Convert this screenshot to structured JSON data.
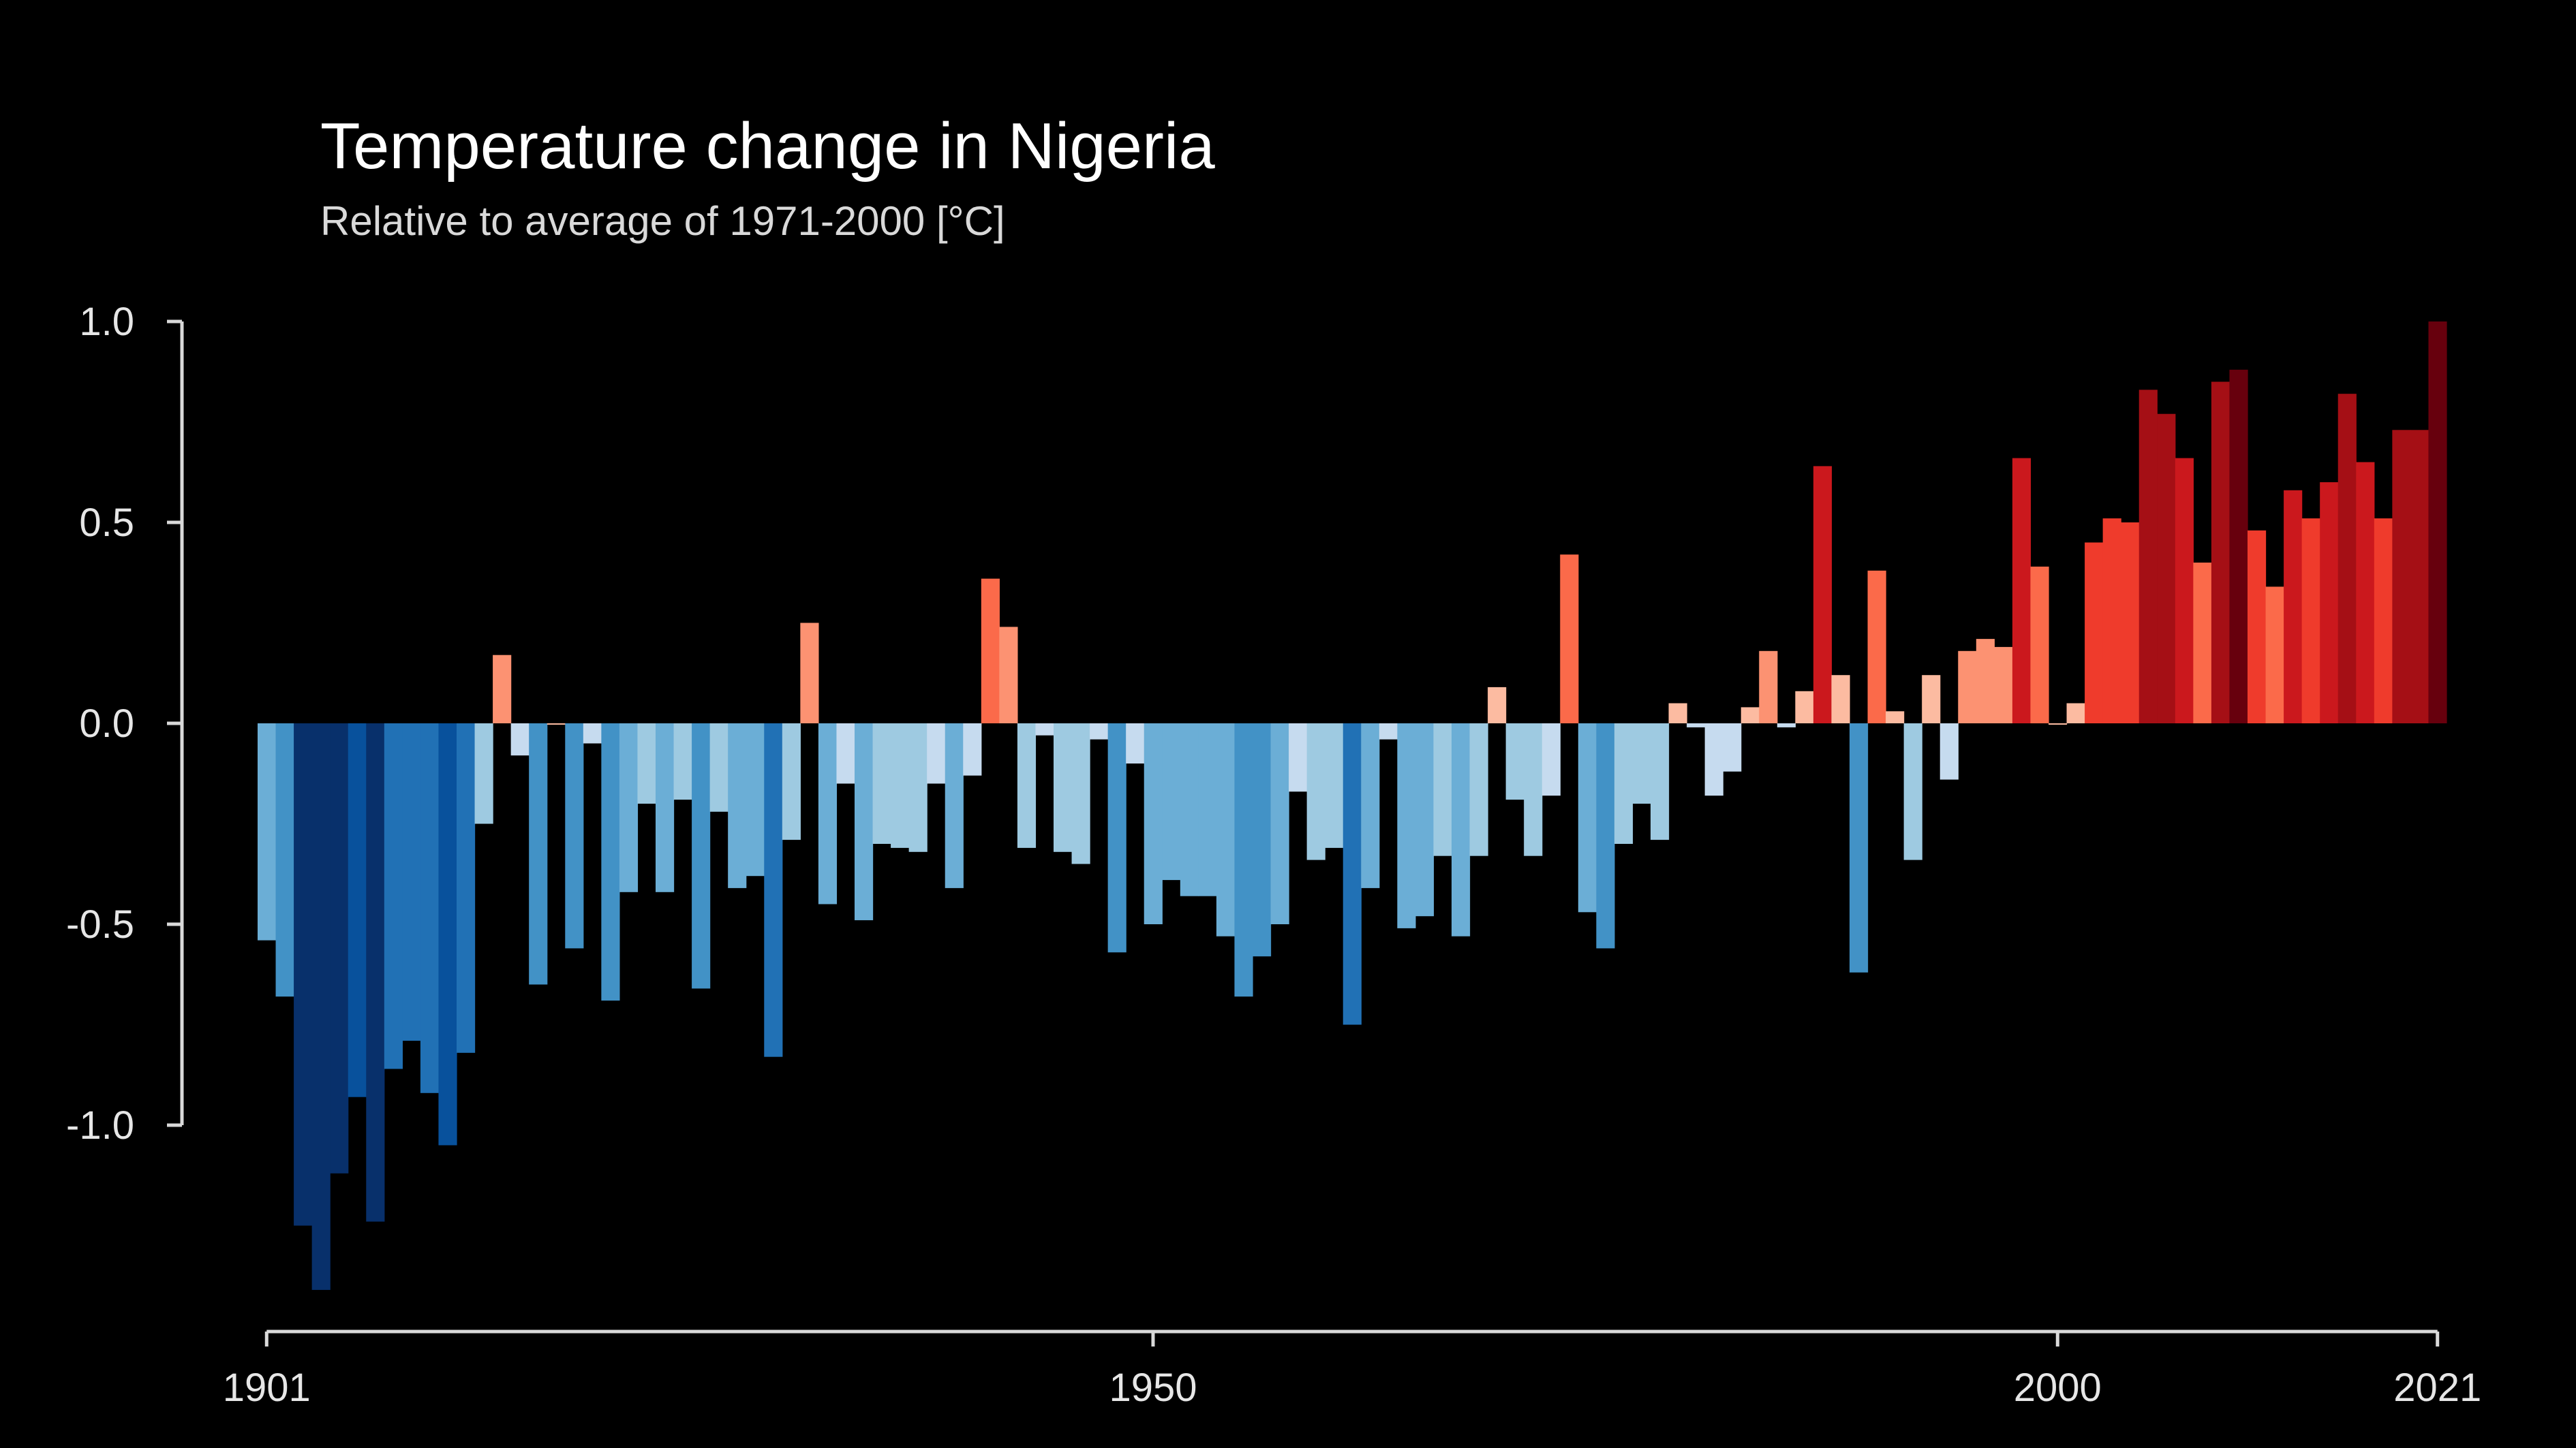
{
  "chart_data": {
    "type": "bar",
    "title": "Temperature change in Nigeria",
    "subtitle": "Relative to average of 1971-2000  [°C]",
    "xlabel": "",
    "ylabel": "",
    "ylim": [
      -1.5,
      1.0
    ],
    "yticks": [
      "1.0",
      "0.5",
      "0.0",
      "-0.5",
      "-1.0"
    ],
    "ytick_values": [
      1.0,
      0.5,
      0.0,
      -0.5,
      -1.0
    ],
    "xticks": [
      "1901",
      "1950",
      "2000",
      "2021"
    ],
    "xtick_values": [
      1901,
      1950,
      2000,
      2021
    ],
    "grid": false,
    "legend": "none",
    "color_scale": {
      "negative": [
        "#08306b",
        "#08519c",
        "#2171b5",
        "#4292c6",
        "#6baed6",
        "#9ecae1",
        "#c6dbef"
      ],
      "positive": [
        "#fcbba1",
        "#fc9272",
        "#fb6a4a",
        "#ef3b2c",
        "#cb181d",
        "#a50f15",
        "#67000d"
      ]
    },
    "x": [
      1901,
      1902,
      1903,
      1904,
      1905,
      1906,
      1907,
      1908,
      1909,
      1910,
      1911,
      1912,
      1913,
      1914,
      1915,
      1916,
      1917,
      1918,
      1919,
      1920,
      1921,
      1922,
      1923,
      1924,
      1925,
      1926,
      1927,
      1928,
      1929,
      1930,
      1931,
      1932,
      1933,
      1934,
      1935,
      1936,
      1937,
      1938,
      1939,
      1940,
      1941,
      1942,
      1943,
      1944,
      1945,
      1946,
      1947,
      1948,
      1949,
      1950,
      1951,
      1952,
      1953,
      1954,
      1955,
      1956,
      1957,
      1958,
      1959,
      1960,
      1961,
      1962,
      1963,
      1964,
      1965,
      1966,
      1967,
      1968,
      1969,
      1970,
      1971,
      1972,
      1973,
      1974,
      1975,
      1976,
      1977,
      1978,
      1979,
      1980,
      1981,
      1982,
      1983,
      1984,
      1985,
      1986,
      1987,
      1988,
      1989,
      1990,
      1991,
      1992,
      1993,
      1994,
      1995,
      1996,
      1997,
      1998,
      1999,
      2000,
      2001,
      2002,
      2003,
      2004,
      2005,
      2006,
      2007,
      2008,
      2009,
      2010,
      2011,
      2012,
      2013,
      2014,
      2015,
      2016,
      2017,
      2018,
      2019,
      2020,
      2021
    ],
    "values": [
      -0.54,
      -0.68,
      -1.25,
      -1.41,
      -1.12,
      -0.93,
      -1.24,
      -0.86,
      -0.79,
      -0.92,
      -1.05,
      -0.82,
      -0.25,
      0.17,
      -0.08,
      -0.65,
      0.0,
      -0.56,
      -0.05,
      -0.69,
      -0.42,
      -0.2,
      -0.42,
      -0.19,
      -0.66,
      -0.22,
      -0.41,
      -0.38,
      -0.83,
      -0.29,
      0.25,
      -0.45,
      -0.15,
      -0.49,
      -0.3,
      -0.31,
      -0.32,
      -0.15,
      -0.41,
      -0.13,
      0.36,
      0.24,
      -0.31,
      -0.03,
      -0.32,
      -0.35,
      -0.04,
      -0.57,
      -0.1,
      -0.5,
      -0.39,
      -0.43,
      -0.43,
      -0.53,
      -0.68,
      -0.58,
      -0.5,
      -0.17,
      -0.34,
      -0.31,
      -0.75,
      -0.41,
      -0.04,
      -0.51,
      -0.48,
      -0.33,
      -0.53,
      -0.33,
      0.09,
      -0.19,
      -0.33,
      -0.18,
      0.42,
      -0.47,
      -0.56,
      -0.3,
      -0.2,
      -0.29,
      0.05,
      -0.01,
      -0.18,
      -0.12,
      0.04,
      0.18,
      -0.01,
      0.08,
      0.64,
      0.12,
      -0.62,
      0.38,
      0.03,
      -0.34,
      0.12,
      -0.14,
      0.18,
      0.21,
      0.19,
      0.66,
      0.39,
      0.0,
      0.05,
      0.45,
      0.51,
      0.5,
      0.83,
      0.77,
      0.66,
      0.4,
      0.85,
      0.88,
      0.48,
      0.34,
      0.58,
      0.51,
      0.6,
      0.82,
      0.65,
      0.51,
      0.73,
      0.73,
      1.0
    ]
  }
}
